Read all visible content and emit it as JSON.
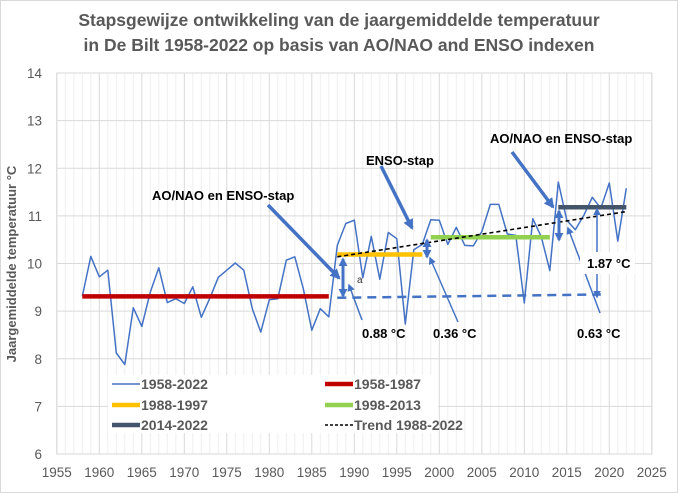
{
  "chart_data": {
    "type": "line",
    "title_line1": "Stapsgewijze ontwikkeling van de jaargemiddelde temperatuur",
    "title_line2": "in De Bilt 1958-2022 op basis van AO/NAO and ENSO indexen",
    "xlabel": "",
    "ylabel": "Jaargemiddelde temperatuur °C",
    "xlim": [
      1955,
      2025
    ],
    "ylim": [
      6,
      14
    ],
    "xticks": [
      1955,
      1960,
      1965,
      1970,
      1975,
      1980,
      1985,
      1990,
      1995,
      2000,
      2005,
      2010,
      2015,
      2020,
      2025
    ],
    "yticks": [
      6,
      7,
      8,
      9,
      10,
      11,
      12,
      13,
      14
    ],
    "grid": true,
    "x": [
      1958,
      1959,
      1960,
      1961,
      1962,
      1963,
      1964,
      1965,
      1966,
      1967,
      1968,
      1969,
      1970,
      1971,
      1972,
      1973,
      1974,
      1975,
      1976,
      1977,
      1978,
      1979,
      1980,
      1981,
      1982,
      1983,
      1984,
      1985,
      1986,
      1987,
      1988,
      1989,
      1990,
      1991,
      1992,
      1993,
      1994,
      1995,
      1996,
      1997,
      1998,
      1999,
      2000,
      2001,
      2002,
      2003,
      2004,
      2005,
      2006,
      2007,
      2008,
      2009,
      2010,
      2011,
      2012,
      2013,
      2014,
      2015,
      2016,
      2017,
      2018,
      2019,
      2020,
      2021,
      2022
    ],
    "series": [
      {
        "name": "1958-2022",
        "color": "#4472c4",
        "values": [
          9.31,
          10.15,
          9.72,
          9.86,
          8.12,
          7.88,
          9.07,
          8.68,
          9.4,
          9.91,
          9.18,
          9.26,
          9.16,
          9.51,
          8.87,
          9.27,
          9.71,
          9.86,
          10.01,
          9.86,
          9.05,
          8.56,
          9.24,
          9.26,
          10.07,
          10.14,
          9.47,
          8.6,
          9.05,
          8.88,
          10.38,
          10.84,
          10.91,
          9.7,
          10.57,
          9.67,
          10.65,
          10.52,
          8.73,
          10.29,
          10.4,
          10.92,
          10.91,
          10.4,
          10.76,
          10.38,
          10.37,
          10.67,
          11.24,
          11.24,
          10.62,
          10.59,
          9.17,
          10.94,
          10.56,
          9.85,
          11.71,
          10.91,
          10.71,
          11.01,
          11.39,
          11.16,
          11.69,
          10.47,
          11.58
        ]
      },
      {
        "name": "1958-1987",
        "color": "#c00000",
        "x": [
          1958,
          1987
        ],
        "values": [
          9.31,
          9.31
        ]
      },
      {
        "name": "1988-1997",
        "color": "#ffc000",
        "x": [
          1988,
          1998
        ],
        "values": [
          10.19,
          10.19
        ]
      },
      {
        "name": "1998-2013",
        "color": "#92d050",
        "x": [
          1999,
          2013
        ],
        "values": [
          10.55,
          10.55
        ]
      },
      {
        "name": "2014-2022",
        "color": "#44546a",
        "x": [
          2014,
          2022
        ],
        "values": [
          11.18,
          11.18
        ]
      },
      {
        "name": "Trend 1988-2022",
        "color": "#000000",
        "dashed": true,
        "x": [
          1988,
          2022
        ],
        "values": [
          10.14,
          11.09
        ]
      }
    ],
    "reference_line": {
      "color": "#4472c4",
      "dashed": true,
      "x": [
        1988,
        2019
      ],
      "values": [
        9.28,
        9.35
      ]
    },
    "annotations": [
      {
        "text": "AO/NAO en ENSO-stap",
        "at_year": 1969,
        "at_value": 11.7
      },
      {
        "text": "ENSO-stap",
        "at_year": 1993,
        "at_value": 12.2
      },
      {
        "text": "AO/NAO en ENSO-stap",
        "at_year": 2006,
        "at_value": 12.6
      },
      {
        "text": "0.88 °C",
        "at_year": 1992,
        "at_value": 8.5
      },
      {
        "text": "0.36 °C",
        "at_year": 2000,
        "at_value": 8.5
      },
      {
        "text": "0.63 °C",
        "at_year": 2017,
        "at_value": 8.5
      },
      {
        "text": "1.87 °C",
        "at_year": 2019,
        "at_value": 10.2
      },
      {
        "text": "a",
        "at_year": 1991,
        "at_value": 9.6
      }
    ],
    "legend": {
      "placement": "bottom-left",
      "items": [
        {
          "label": "1958-2022",
          "color": "#4472c4",
          "style": "thin"
        },
        {
          "label": "1958-1987",
          "color": "#c00000",
          "style": "thick"
        },
        {
          "label": "1988-1997",
          "color": "#ffc000",
          "style": "thick"
        },
        {
          "label": "1998-2013",
          "color": "#92d050",
          "style": "thick"
        },
        {
          "label": "2014-2022",
          "color": "#44546a",
          "style": "thick"
        },
        {
          "label": "Trend 1988-2022",
          "color": "#000000",
          "style": "dashed"
        }
      ]
    }
  }
}
